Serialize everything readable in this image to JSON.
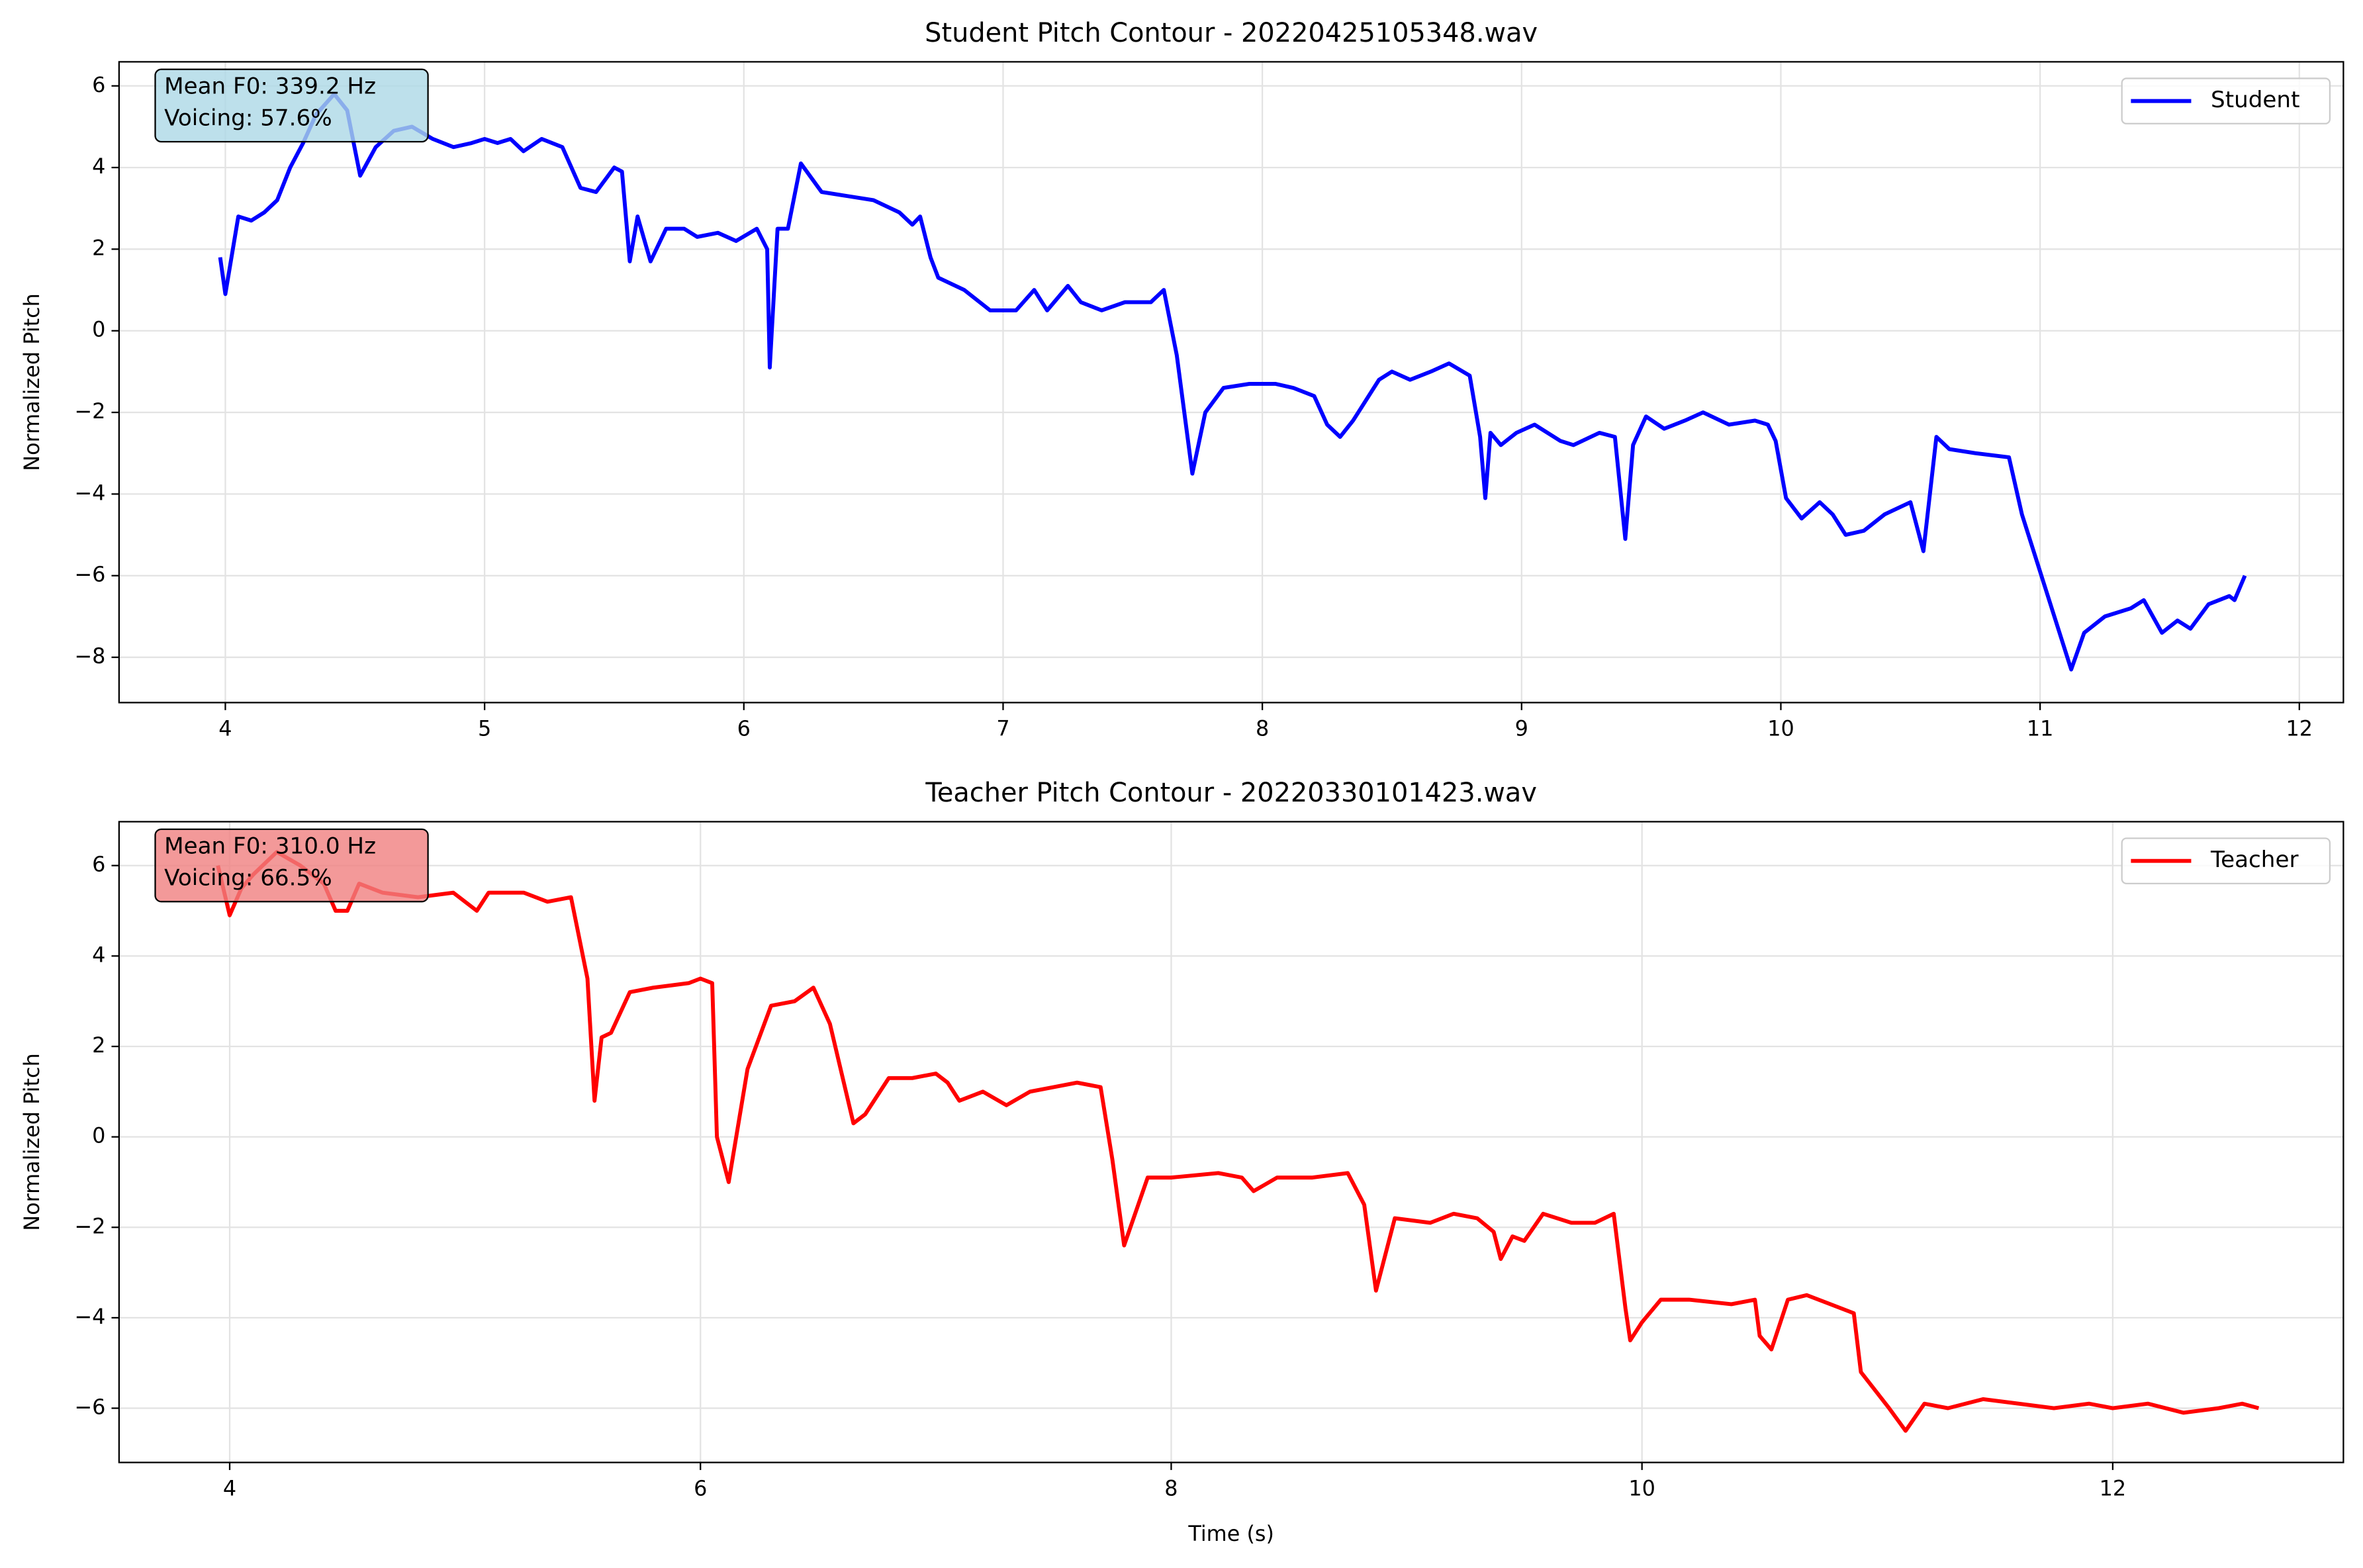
{
  "chart_data": [
    {
      "type": "line",
      "title": "Student Pitch Contour - 20220425105348.wav",
      "ylabel": "Normalized Pitch",
      "annotation": [
        "Mean F0: 339.2 Hz",
        "Voicing: 57.6%"
      ],
      "annotation_color": "#add8e6",
      "legend": "upper right",
      "grid": true,
      "xlim": [
        3.59,
        12.17
      ],
      "ylim": [
        -9.11,
        6.59
      ],
      "xticks": [
        4,
        5,
        6,
        7,
        8,
        9,
        10,
        11,
        12
      ],
      "yticks": [
        6,
        4,
        2,
        0,
        {
          "value": -2,
          "label": "−2"
        },
        {
          "value": -4,
          "label": "−4"
        },
        {
          "value": -6,
          "label": "−6"
        },
        {
          "value": -8,
          "label": "−8"
        }
      ],
      "x": [
        3.98,
        4.0,
        4.05,
        4.1,
        4.15,
        4.2,
        4.25,
        4.3,
        4.35,
        4.42,
        4.47,
        4.52,
        4.58,
        4.65,
        4.72,
        4.8,
        4.88,
        4.95,
        5.0,
        5.05,
        5.1,
        5.15,
        5.22,
        5.3,
        5.37,
        5.43,
        5.5,
        5.53,
        5.56,
        5.59,
        5.64,
        5.7,
        5.77,
        5.82,
        5.9,
        5.97,
        6.05,
        6.09,
        6.1,
        6.13,
        6.17,
        6.22,
        6.3,
        6.4,
        6.5,
        6.6,
        6.65,
        6.68,
        6.72,
        6.75,
        6.85,
        6.95,
        7.05,
        7.12,
        7.17,
        7.25,
        7.3,
        7.38,
        7.47,
        7.57,
        7.62,
        7.67,
        7.73,
        7.78,
        7.85,
        7.95,
        8.05,
        8.12,
        8.2,
        8.25,
        8.3,
        8.35,
        8.45,
        8.5,
        8.57,
        8.65,
        8.72,
        8.8,
        8.84,
        8.86,
        8.88,
        8.92,
        8.98,
        9.05,
        9.15,
        9.2,
        9.3,
        9.36,
        9.4,
        9.43,
        9.48,
        9.55,
        9.63,
        9.7,
        9.8,
        9.9,
        9.95,
        9.98,
        10.02,
        10.08,
        10.15,
        10.2,
        10.25,
        10.32,
        10.4,
        10.5,
        10.55,
        10.6,
        10.65,
        10.75,
        10.88,
        10.93,
        11.05,
        11.12,
        11.17,
        11.25,
        11.35,
        11.4,
        11.47,
        11.53,
        11.58,
        11.65,
        11.73,
        11.75,
        11.79
      ],
      "series": [
        {
          "name": "Student",
          "color": "#0000ff",
          "values": [
            1.8,
            0.9,
            2.8,
            2.7,
            2.9,
            3.2,
            4.0,
            4.6,
            5.3,
            5.8,
            5.4,
            3.8,
            4.5,
            4.9,
            5.0,
            4.7,
            4.5,
            4.6,
            4.7,
            4.6,
            4.7,
            4.4,
            4.7,
            4.5,
            3.5,
            3.4,
            4.0,
            3.9,
            1.7,
            2.8,
            1.7,
            2.5,
            2.5,
            2.3,
            2.4,
            2.2,
            2.5,
            2.0,
            -0.9,
            2.5,
            2.5,
            4.1,
            3.4,
            3.3,
            3.2,
            2.9,
            2.6,
            2.8,
            1.8,
            1.3,
            1.0,
            0.5,
            0.5,
            1.0,
            0.5,
            1.1,
            0.7,
            0.5,
            0.7,
            0.7,
            1.0,
            -0.6,
            -3.5,
            -2.0,
            -1.4,
            -1.3,
            -1.3,
            -1.4,
            -1.6,
            -2.3,
            -2.6,
            -2.2,
            -1.2,
            -1.0,
            -1.2,
            -1.0,
            -0.8,
            -1.1,
            -2.6,
            -4.1,
            -2.5,
            -2.8,
            -2.5,
            -2.3,
            -2.7,
            -2.8,
            -2.5,
            -2.6,
            -5.1,
            -2.8,
            -2.1,
            -2.4,
            -2.2,
            -2.0,
            -2.3,
            -2.2,
            -2.3,
            -2.7,
            -4.1,
            -4.6,
            -4.2,
            -4.5,
            -5.0,
            -4.9,
            -4.5,
            -4.2,
            -5.4,
            -2.6,
            -2.9,
            -3.0,
            -3.1,
            -4.5,
            -6.9,
            -8.3,
            -7.4,
            -7.0,
            -6.8,
            -6.6,
            -7.4,
            -7.1,
            -7.3,
            -6.7,
            -6.5,
            -6.6,
            -6.0
          ]
        }
      ]
    },
    {
      "type": "line",
      "title": "Teacher Pitch Contour - 20220330101423.wav",
      "ylabel": "Normalized Pitch",
      "xlabel": "Time (s)",
      "annotation": [
        "Mean F0: 310.0 Hz",
        "Voicing: 66.5%"
      ],
      "annotation_color": "#f08080",
      "legend": "upper right",
      "grid": true,
      "xlim": [
        3.53,
        12.98
      ],
      "ylim": [
        -7.2,
        6.97
      ],
      "xticks": [
        4,
        6,
        8,
        10,
        12
      ],
      "yticks": [
        6,
        4,
        2,
        0,
        {
          "value": -2,
          "label": "−2"
        },
        {
          "value": -4,
          "label": "−4"
        },
        {
          "value": -6,
          "label": "−6"
        }
      ],
      "x": [
        3.95,
        4.0,
        4.05,
        4.1,
        4.2,
        4.3,
        4.4,
        4.45,
        4.5,
        4.55,
        4.65,
        4.8,
        4.95,
        5.05,
        5.1,
        5.25,
        5.35,
        5.45,
        5.52,
        5.55,
        5.58,
        5.62,
        5.7,
        5.8,
        5.95,
        6.0,
        6.05,
        6.07,
        6.12,
        6.2,
        6.3,
        6.4,
        6.48,
        6.55,
        6.65,
        6.7,
        6.8,
        6.9,
        7.0,
        7.05,
        7.1,
        7.2,
        7.3,
        7.4,
        7.5,
        7.6,
        7.7,
        7.75,
        7.8,
        7.9,
        8.0,
        8.2,
        8.3,
        8.35,
        8.45,
        8.6,
        8.75,
        8.82,
        8.87,
        8.95,
        9.1,
        9.2,
        9.3,
        9.37,
        9.4,
        9.45,
        9.5,
        9.58,
        9.7,
        9.8,
        9.88,
        9.93,
        9.95,
        10.0,
        10.08,
        10.2,
        10.38,
        10.48,
        10.5,
        10.55,
        10.62,
        10.7,
        10.8,
        10.9,
        10.93,
        11.05,
        11.12,
        11.2,
        11.3,
        11.45,
        11.6,
        11.75,
        11.9,
        12.0,
        12.15,
        12.3,
        12.45,
        12.55,
        12.62
      ],
      "series": [
        {
          "name": "Teacher",
          "color": "#ff0000",
          "values": [
            6.0,
            4.9,
            5.5,
            5.8,
            6.3,
            6.0,
            5.6,
            5.0,
            5.0,
            5.6,
            5.4,
            5.3,
            5.4,
            5.0,
            5.4,
            5.4,
            5.2,
            5.3,
            3.5,
            0.8,
            2.2,
            2.3,
            3.2,
            3.3,
            3.4,
            3.5,
            3.4,
            0.0,
            -1.0,
            1.5,
            2.9,
            3.0,
            3.3,
            2.5,
            0.3,
            0.5,
            1.3,
            1.3,
            1.4,
            1.2,
            0.8,
            1.0,
            0.7,
            1.0,
            1.1,
            1.2,
            1.1,
            -0.5,
            -2.4,
            -0.9,
            -0.9,
            -0.8,
            -0.9,
            -1.2,
            -0.9,
            -0.9,
            -0.8,
            -1.5,
            -3.4,
            -1.8,
            -1.9,
            -1.7,
            -1.8,
            -2.1,
            -2.7,
            -2.2,
            -2.3,
            -1.7,
            -1.9,
            -1.9,
            -1.7,
            -3.8,
            -4.5,
            -4.1,
            -3.6,
            -3.6,
            -3.7,
            -3.6,
            -4.4,
            -4.7,
            -3.6,
            -3.5,
            -3.7,
            -3.9,
            -5.2,
            -6.0,
            -6.5,
            -5.9,
            -6.0,
            -5.8,
            -5.9,
            -6.0,
            -5.9,
            -6.0,
            -5.9,
            -6.1,
            -6.0,
            -5.9,
            -6.0
          ]
        }
      ]
    }
  ]
}
